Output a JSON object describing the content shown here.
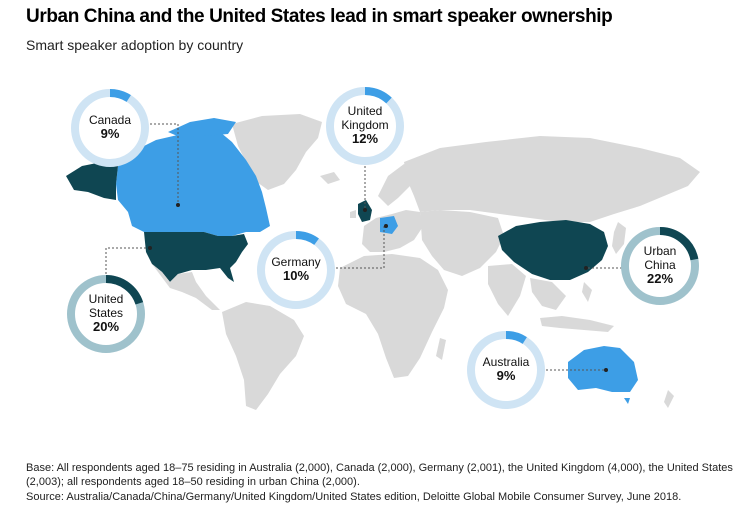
{
  "header": {
    "title": "Urban China and the United States lead in smart speaker ownership",
    "subtitle": "Smart speaker adoption by country"
  },
  "colors": {
    "land_default": "#d9d9d9",
    "highlight_light": "#3d9ee6",
    "highlight_dark": "#0f4652",
    "ring_light_track": "#cfe4f4",
    "ring_light_arc": "#3d9ee6",
    "ring_dark_track": "#9fc2cc",
    "ring_dark_arc": "#0f4652"
  },
  "map_data": {
    "regions": [
      {
        "name": "Canada",
        "label": "Canada",
        "value": "9%",
        "percent": 9,
        "shade": "light"
      },
      {
        "name": "United Kingdom",
        "label": "United\nKingdom",
        "value": "12%",
        "percent": 12,
        "shade": "light"
      },
      {
        "name": "Germany",
        "label": "Germany",
        "value": "10%",
        "percent": 10,
        "shade": "light"
      },
      {
        "name": "Urban China",
        "label": "Urban\nChina",
        "value": "22%",
        "percent": 22,
        "shade": "dark"
      },
      {
        "name": "United States",
        "label": "United\nStates",
        "value": "20%",
        "percent": 20,
        "shade": "dark"
      },
      {
        "name": "Australia",
        "label": "Australia",
        "value": "9%",
        "percent": 9,
        "shade": "light"
      }
    ]
  },
  "footer": {
    "base": "Base: All respondents aged 18–75 residing in Australia (2,000), Canada (2,000), Germany (2,001), the United Kingdom (4,000), the United States (2,003); all respondents aged 18–50 residing in urban China (2,000).",
    "source": "Source: Australia/Canada/China/Germany/United Kingdom/United States edition, Deloitte Global Mobile Consumer Survey, June 2018."
  }
}
